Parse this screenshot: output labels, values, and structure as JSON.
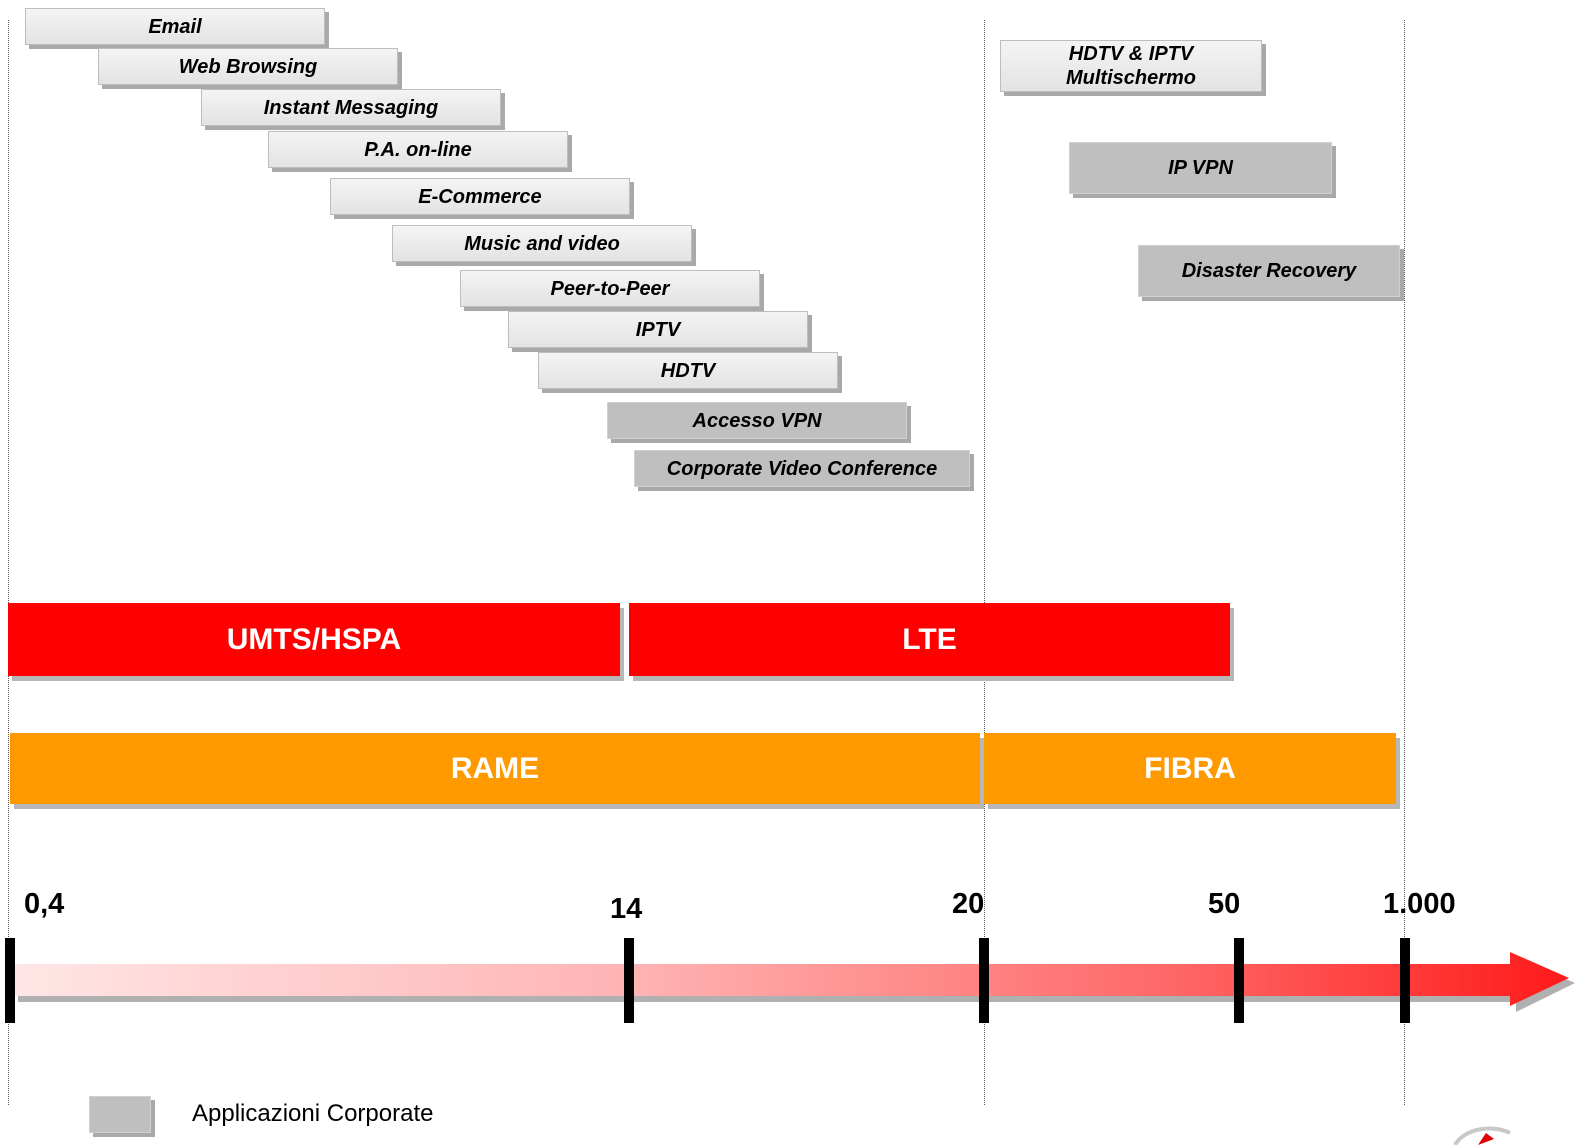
{
  "apps": [
    {
      "label": "Email",
      "type": "consumer"
    },
    {
      "label": "Web Browsing",
      "type": "consumer"
    },
    {
      "label": "Instant Messaging",
      "type": "consumer"
    },
    {
      "label": "P.A. on-line",
      "type": "consumer"
    },
    {
      "label": "E-Commerce",
      "type": "consumer"
    },
    {
      "label": "Music and video",
      "type": "consumer"
    },
    {
      "label": "Peer-to-Peer",
      "type": "consumer"
    },
    {
      "label": "IPTV",
      "type": "consumer"
    },
    {
      "label": "HDTV",
      "type": "consumer"
    },
    {
      "label": "Accesso VPN",
      "type": "corporate"
    },
    {
      "label": "Corporate Video Conference",
      "type": "corporate"
    },
    {
      "label_line1": "HDTV & IPTV",
      "label_line2": "Multischermo",
      "type": "consumer"
    },
    {
      "label": "IP VPN",
      "type": "corporate"
    },
    {
      "label": "Disaster Recovery",
      "type": "corporate"
    }
  ],
  "bands": {
    "umts": "UMTS/HSPA",
    "lte": "LTE",
    "rame": "RAME",
    "fibra": "FIBRA"
  },
  "axis": {
    "ticks": [
      "0,4",
      "14",
      "20",
      "50",
      "1.000"
    ]
  },
  "legend": {
    "corporate_label": "Applicazioni Corporate"
  },
  "colors": {
    "mobile_band": "#ff0000",
    "fixed_band": "#ff9900",
    "corporate_app": "#bfbfbf",
    "consumer_app": "#ececec"
  }
}
